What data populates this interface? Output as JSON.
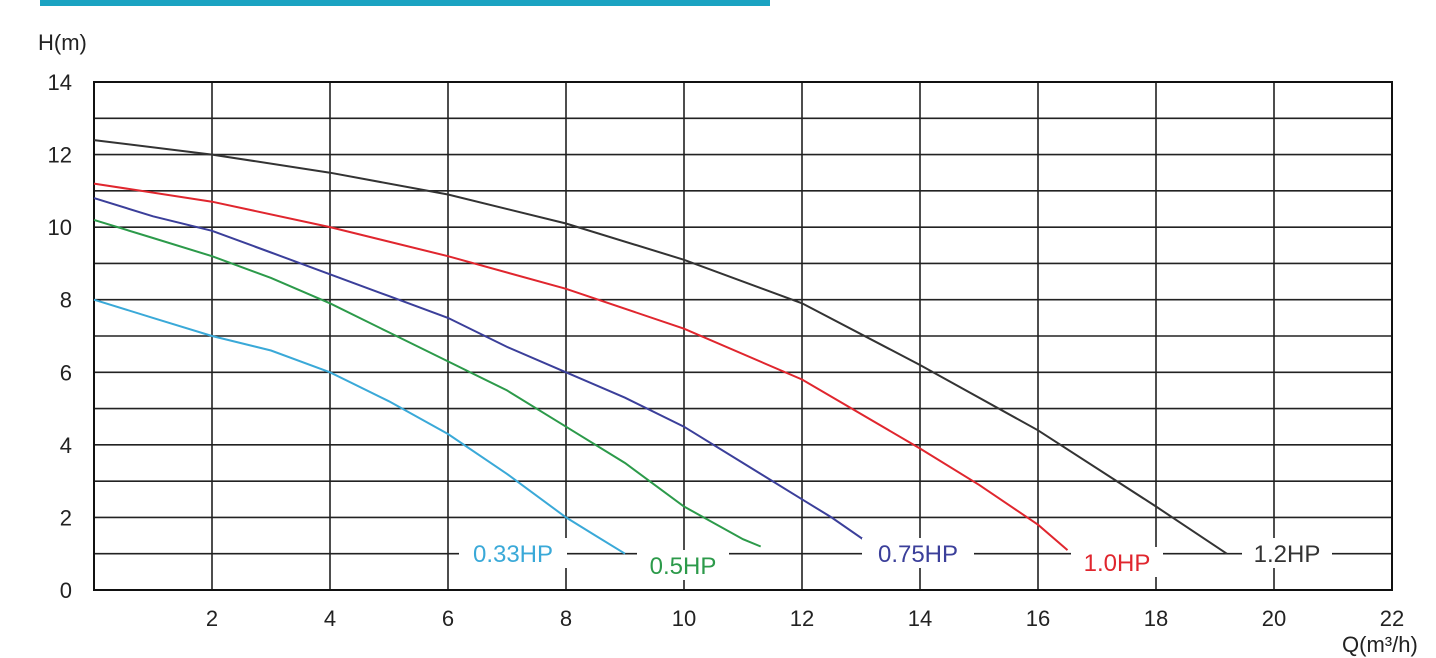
{
  "chart_data": {
    "type": "line",
    "title": "",
    "xlabel": "Q(m³/h)",
    "ylabel": "H(m)",
    "xlim": [
      0,
      22
    ],
    "ylim": [
      0,
      14
    ],
    "x_ticks": [
      "2",
      "4",
      "6",
      "8",
      "10",
      "12",
      "14",
      "16",
      "18",
      "20",
      "22"
    ],
    "y_ticks": [
      "0",
      "2",
      "4",
      "6",
      "8",
      "10",
      "12",
      "14"
    ],
    "grid": true,
    "series": [
      {
        "name": "0.33HP",
        "color": "#3aa9d8",
        "points": [
          [
            0,
            8.0
          ],
          [
            1,
            7.5
          ],
          [
            2,
            7.0
          ],
          [
            3,
            6.6
          ],
          [
            4,
            6.0
          ],
          [
            5,
            5.2
          ],
          [
            6,
            4.3
          ],
          [
            7,
            3.2
          ],
          [
            8,
            2.0
          ],
          [
            8.5,
            1.5
          ],
          [
            9.0,
            1.0
          ]
        ]
      },
      {
        "name": "0.5HP",
        "color": "#2c9a4a",
        "points": [
          [
            0,
            10.2
          ],
          [
            1,
            9.7
          ],
          [
            2,
            9.2
          ],
          [
            3,
            8.6
          ],
          [
            4,
            7.9
          ],
          [
            5,
            7.1
          ],
          [
            6,
            6.3
          ],
          [
            7,
            5.5
          ],
          [
            8,
            4.5
          ],
          [
            9,
            3.5
          ],
          [
            10,
            2.3
          ],
          [
            11,
            1.4
          ],
          [
            11.3,
            1.2
          ]
        ]
      },
      {
        "name": "0.75HP",
        "color": "#3b3f9a",
        "points": [
          [
            0,
            10.8
          ],
          [
            1,
            10.3
          ],
          [
            2,
            9.9
          ],
          [
            3,
            9.3
          ],
          [
            4,
            8.7
          ],
          [
            5,
            8.1
          ],
          [
            6,
            7.5
          ],
          [
            7,
            6.7
          ],
          [
            8,
            6.0
          ],
          [
            9,
            5.3
          ],
          [
            10,
            4.5
          ],
          [
            11,
            3.5
          ],
          [
            12,
            2.5
          ],
          [
            12.5,
            2.0
          ],
          [
            13.3,
            1.1
          ]
        ]
      },
      {
        "name": "1.0HP",
        "color": "#e0262e",
        "points": [
          [
            0,
            11.2
          ],
          [
            2,
            10.7
          ],
          [
            4,
            10.0
          ],
          [
            6,
            9.2
          ],
          [
            8,
            8.3
          ],
          [
            10,
            7.2
          ],
          [
            12,
            5.8
          ],
          [
            14,
            3.9
          ],
          [
            15,
            2.9
          ],
          [
            16,
            1.8
          ],
          [
            16.5,
            1.1
          ]
        ]
      },
      {
        "name": "1.2HP",
        "color": "#333333",
        "points": [
          [
            0,
            12.4
          ],
          [
            2,
            12.0
          ],
          [
            4,
            11.5
          ],
          [
            6,
            10.9
          ],
          [
            8,
            10.1
          ],
          [
            10,
            9.1
          ],
          [
            12,
            7.9
          ],
          [
            14,
            6.2
          ],
          [
            16,
            4.4
          ],
          [
            18,
            2.3
          ],
          [
            19.2,
            1.0
          ]
        ]
      }
    ]
  }
}
